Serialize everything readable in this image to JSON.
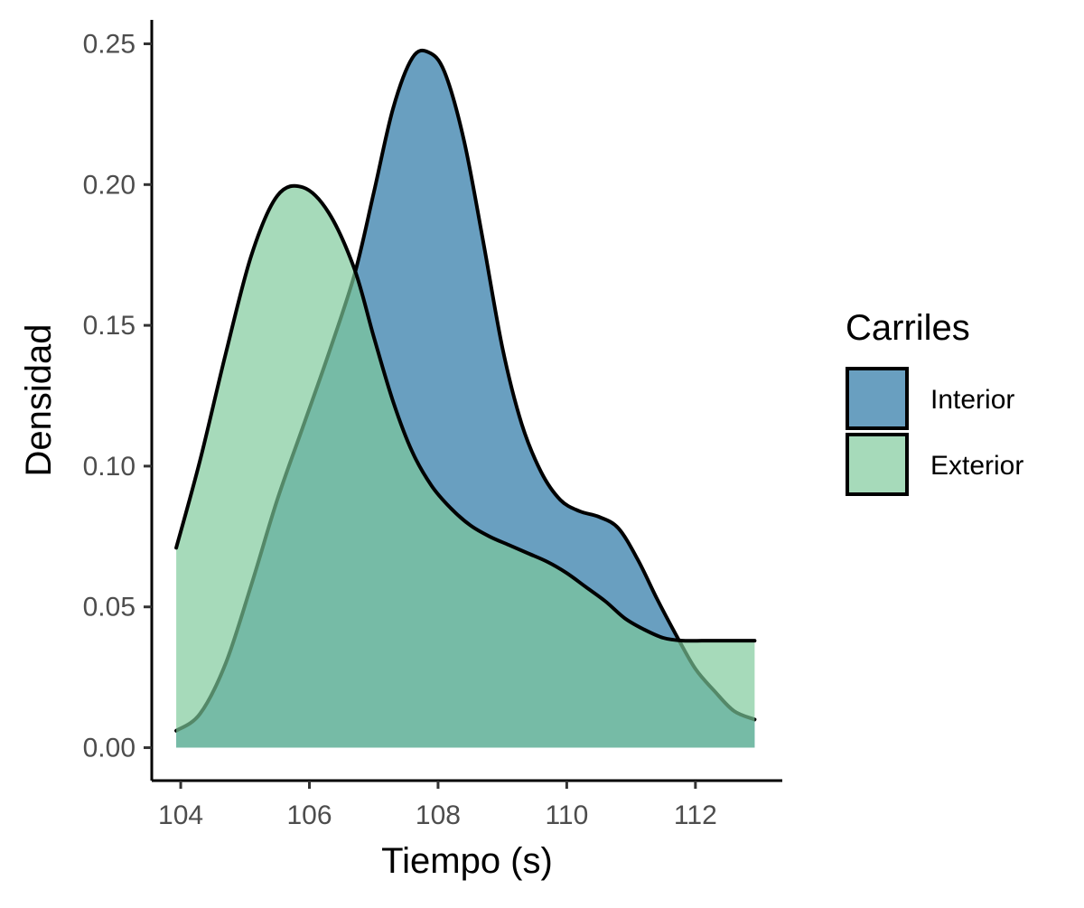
{
  "chart_data": {
    "type": "area",
    "title": "",
    "xlabel": "Tiempo (s)",
    "ylabel": "Densidad",
    "xlim": [
      103.55,
      113.35
    ],
    "ylim": [
      -0.0117,
      0.2585
    ],
    "x_ticks": [
      104,
      106,
      108,
      110,
      112
    ],
    "x_tick_labels": [
      "104",
      "106",
      "108",
      "110",
      "112"
    ],
    "y_ticks": [
      0,
      0.05,
      0.1,
      0.15,
      0.2,
      0.25
    ],
    "y_tick_labels": [
      "0.00",
      "0.05",
      "0.10",
      "0.15",
      "0.20",
      "0.25"
    ],
    "grid": false,
    "legend": {
      "title": "Carriles",
      "placement": "right"
    },
    "series": [
      {
        "name": "Interior",
        "color": "#2f7aa8",
        "x": [
          103.93,
          104.3,
          104.7,
          105.1,
          105.5,
          105.9,
          106.3,
          106.7,
          107.0,
          107.3,
          107.6,
          107.85,
          108.1,
          108.4,
          108.7,
          109.0,
          109.3,
          109.6,
          109.9,
          110.2,
          110.5,
          110.8,
          111.1,
          111.4,
          111.7,
          112.0,
          112.3,
          112.6,
          112.92
        ],
        "y": [
          0.006,
          0.012,
          0.03,
          0.058,
          0.088,
          0.114,
          0.14,
          0.168,
          0.197,
          0.227,
          0.245,
          0.247,
          0.24,
          0.216,
          0.18,
          0.142,
          0.115,
          0.098,
          0.088,
          0.084,
          0.082,
          0.078,
          0.067,
          0.053,
          0.04,
          0.028,
          0.02,
          0.013,
          0.01
        ]
      },
      {
        "name": "Exterior",
        "color": "#7cc99a",
        "x": [
          103.93,
          104.3,
          104.7,
          105.1,
          105.5,
          105.9,
          106.3,
          106.7,
          107.0,
          107.3,
          107.6,
          107.9,
          108.2,
          108.5,
          108.8,
          109.1,
          109.4,
          109.7,
          110.0,
          110.3,
          110.6,
          110.9,
          111.2,
          111.5,
          111.8,
          112.1,
          112.4,
          112.7,
          112.92
        ],
        "y": [
          0.071,
          0.102,
          0.14,
          0.175,
          0.196,
          0.199,
          0.19,
          0.17,
          0.146,
          0.123,
          0.105,
          0.093,
          0.085,
          0.079,
          0.075,
          0.072,
          0.069,
          0.066,
          0.062,
          0.057,
          0.052,
          0.046,
          0.042,
          0.039,
          0.038,
          0.038,
          0.038,
          0.038,
          0.038
        ]
      }
    ]
  }
}
